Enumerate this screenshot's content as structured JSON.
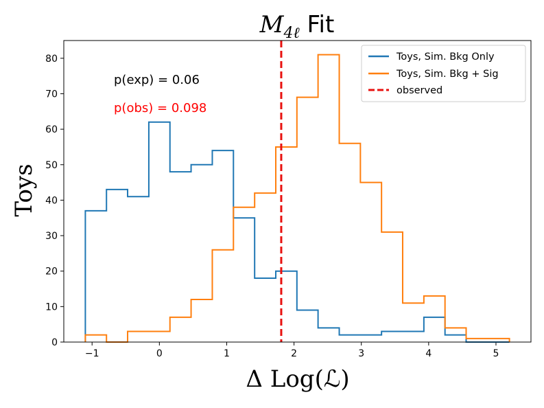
{
  "chart_data": {
    "type": "histogram",
    "title_main": "M",
    "title_sub": "4ℓ",
    "title_rest": " Fit",
    "xlabel": "Δ Log(ℒ)",
    "ylabel": "Toys",
    "xlim": [
      -1.42,
      5.52
    ],
    "ylim": [
      0,
      85
    ],
    "xticks": [
      -1,
      0,
      1,
      2,
      3,
      4,
      5
    ],
    "xtick_labels": [
      "−1",
      "0",
      "1",
      "2",
      "3",
      "4",
      "5"
    ],
    "yticks": [
      0,
      10,
      20,
      30,
      40,
      50,
      60,
      70,
      80
    ],
    "bin_edges": [
      -1.1,
      -0.786,
      -0.472,
      -0.157,
      0.157,
      0.471,
      0.786,
      1.1,
      1.415,
      1.729,
      2.043,
      2.357,
      2.672,
      2.986,
      3.3,
      3.614,
      3.929,
      4.243,
      4.557,
      4.871,
      5.2
    ],
    "series": [
      {
        "name": "Toys, Sim. Bkg Only",
        "color": "#1f77b4",
        "values": [
          37,
          43,
          41,
          62,
          48,
          50,
          54,
          35,
          18,
          20,
          9,
          4,
          2,
          2,
          3,
          3,
          7,
          2,
          0,
          0
        ]
      },
      {
        "name": "Toys, Sim. Bkg + Sig",
        "color": "#ff7f0e",
        "values": [
          2,
          0,
          3,
          3,
          7,
          12,
          26,
          38,
          42,
          55,
          69,
          81,
          56,
          45,
          31,
          11,
          13,
          4,
          1,
          1
        ]
      }
    ],
    "observed": {
      "name": "observed",
      "x": 1.81,
      "color": "#e8110f"
    },
    "legend_position": "top-right",
    "annotations": [
      {
        "text": "p(exp) = 0.06",
        "color": "#000000"
      },
      {
        "text": "p(obs) = 0.098",
        "color": "#ff0000"
      }
    ]
  }
}
